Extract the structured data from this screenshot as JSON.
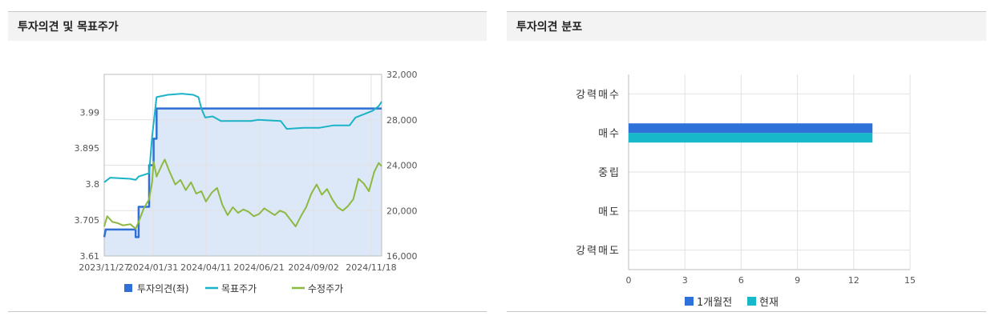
{
  "left_panel": {
    "title": "투자의견 및 목표주가"
  },
  "right_panel": {
    "title": "투자의견 분포"
  },
  "chart_data": [
    {
      "type": "line",
      "title": "투자의견 및 목표주가",
      "x_ticks": [
        "2023/11/27",
        "2024/01/31",
        "2024/04/11",
        "2024/06/21",
        "2024/09/02",
        "2024/11/18"
      ],
      "x_range": [
        "2023/11/27",
        "2024/12/02"
      ],
      "y_left_ticks": [
        "3.61",
        "3.705",
        "3.8",
        "3.895",
        "3.99"
      ],
      "y_left_range": [
        3.61,
        4.09
      ],
      "y_right_ticks": [
        "16,000",
        "20,000",
        "24,000",
        "28,000",
        "32,000"
      ],
      "y_right_range": [
        16000,
        32000
      ],
      "grid": true,
      "legend_position": "bottom",
      "legend": [
        "투자의견(좌)",
        "목표주가",
        "수정주가"
      ],
      "series": [
        {
          "name": "투자의견(좌)",
          "axis": "left",
          "color": "#2f6fd6",
          "fill": "#dce8f8",
          "points": [
            [
              "2023/11/27",
              3.66
            ],
            [
              "2023/11/29",
              3.68
            ],
            [
              "2024/01/08",
              3.68
            ],
            [
              "2024/01/08",
              3.66
            ],
            [
              "2024/01/12",
              3.66
            ],
            [
              "2024/01/12",
              3.74
            ],
            [
              "2024/01/26",
              3.74
            ],
            [
              "2024/01/26",
              3.85
            ],
            [
              "2024/02/01",
              3.85
            ],
            [
              "2024/02/01",
              3.92
            ],
            [
              "2024/02/05",
              3.92
            ],
            [
              "2024/02/05",
              4.0
            ],
            [
              "2024/12/02",
              4.0
            ]
          ]
        },
        {
          "name": "목표주가",
          "axis": "right",
          "color": "#1bb3c7",
          "points": [
            [
              "2023/11/27",
              22500
            ],
            [
              "2023/12/05",
              22900
            ],
            [
              "2024/01/01",
              22800
            ],
            [
              "2024/01/08",
              22700
            ],
            [
              "2024/01/12",
              23000
            ],
            [
              "2024/01/26",
              23300
            ],
            [
              "2024/01/30",
              26500
            ],
            [
              "2024/02/05",
              30000
            ],
            [
              "2024/02/20",
              30200
            ],
            [
              "2024/03/10",
              30300
            ],
            [
              "2024/03/25",
              30200
            ],
            [
              "2024/04/01",
              30000
            ],
            [
              "2024/04/05",
              29000
            ],
            [
              "2024/04/10",
              28200
            ],
            [
              "2024/04/20",
              28300
            ],
            [
              "2024/05/01",
              27900
            ],
            [
              "2024/06/10",
              27900
            ],
            [
              "2024/06/20",
              28000
            ],
            [
              "2024/07/20",
              27900
            ],
            [
              "2024/07/28",
              27200
            ],
            [
              "2024/08/20",
              27300
            ],
            [
              "2024/09/10",
              27300
            ],
            [
              "2024/09/28",
              27500
            ],
            [
              "2024/10/20",
              27500
            ],
            [
              "2024/10/28",
              28200
            ],
            [
              "2024/11/20",
              28800
            ],
            [
              "2024/11/28",
              29200
            ],
            [
              "2024/12/02",
              29600
            ]
          ]
        },
        {
          "name": "수정주가",
          "axis": "right",
          "color": "#8db941",
          "points": [
            [
              "2023/11/27",
              18600
            ],
            [
              "2023/12/01",
              19500
            ],
            [
              "2023/12/08",
              19000
            ],
            [
              "2023/12/15",
              18900
            ],
            [
              "2023/12/22",
              18700
            ],
            [
              "2024/01/01",
              18800
            ],
            [
              "2024/01/08",
              18400
            ],
            [
              "2024/01/12",
              19000
            ],
            [
              "2024/01/19",
              20200
            ],
            [
              "2024/01/26",
              21000
            ],
            [
              "2024/01/30",
              22500
            ],
            [
              "2024/02/01",
              24300
            ],
            [
              "2024/02/05",
              23000
            ],
            [
              "2024/02/12",
              24000
            ],
            [
              "2024/02/16",
              24500
            ],
            [
              "2024/02/22",
              23500
            ],
            [
              "2024/03/01",
              22300
            ],
            [
              "2024/03/08",
              22700
            ],
            [
              "2024/03/15",
              21800
            ],
            [
              "2024/03/22",
              22500
            ],
            [
              "2024/03/29",
              21500
            ],
            [
              "2024/04/05",
              21700
            ],
            [
              "2024/04/11",
              20800
            ],
            [
              "2024/04/19",
              21600
            ],
            [
              "2024/04/26",
              22000
            ],
            [
              "2024/05/03",
              20500
            ],
            [
              "2024/05/10",
              19600
            ],
            [
              "2024/05/17",
              20300
            ],
            [
              "2024/05/24",
              19800
            ],
            [
              "2024/05/31",
              20100
            ],
            [
              "2024/06/07",
              19900
            ],
            [
              "2024/06/14",
              19500
            ],
            [
              "2024/06/21",
              19700
            ],
            [
              "2024/06/28",
              20200
            ],
            [
              "2024/07/05",
              19900
            ],
            [
              "2024/07/12",
              19600
            ],
            [
              "2024/07/19",
              20000
            ],
            [
              "2024/07/26",
              19800
            ],
            [
              "2024/08/02",
              19200
            ],
            [
              "2024/08/09",
              18600
            ],
            [
              "2024/08/16",
              19500
            ],
            [
              "2024/08/23",
              20300
            ],
            [
              "2024/08/30",
              21500
            ],
            [
              "2024/09/06",
              22300
            ],
            [
              "2024/09/13",
              21400
            ],
            [
              "2024/09/20",
              21900
            ],
            [
              "2024/09/27",
              21000
            ],
            [
              "2024/10/04",
              20300
            ],
            [
              "2024/10/11",
              20000
            ],
            [
              "2024/10/18",
              20400
            ],
            [
              "2024/10/25",
              21000
            ],
            [
              "2024/11/01",
              22800
            ],
            [
              "2024/11/08",
              22400
            ],
            [
              "2024/11/15",
              21700
            ],
            [
              "2024/11/22",
              23400
            ],
            [
              "2024/11/28",
              24200
            ],
            [
              "2024/12/02",
              23900
            ]
          ]
        }
      ]
    },
    {
      "type": "bar",
      "orientation": "horizontal",
      "title": "투자의견 분포",
      "categories": [
        "강력매수",
        "매수",
        "중립",
        "매도",
        "강력매도"
      ],
      "x_ticks": [
        "0",
        "3",
        "6",
        "9",
        "12",
        "15"
      ],
      "x_range": [
        0,
        15
      ],
      "grid": true,
      "legend_position": "bottom",
      "series": [
        {
          "name": "1개월전",
          "color": "#2e72d9",
          "values": [
            0,
            13,
            0,
            0,
            0
          ]
        },
        {
          "name": "현재",
          "color": "#17b8c9",
          "values": [
            0,
            13,
            0,
            0,
            0
          ]
        }
      ]
    }
  ]
}
